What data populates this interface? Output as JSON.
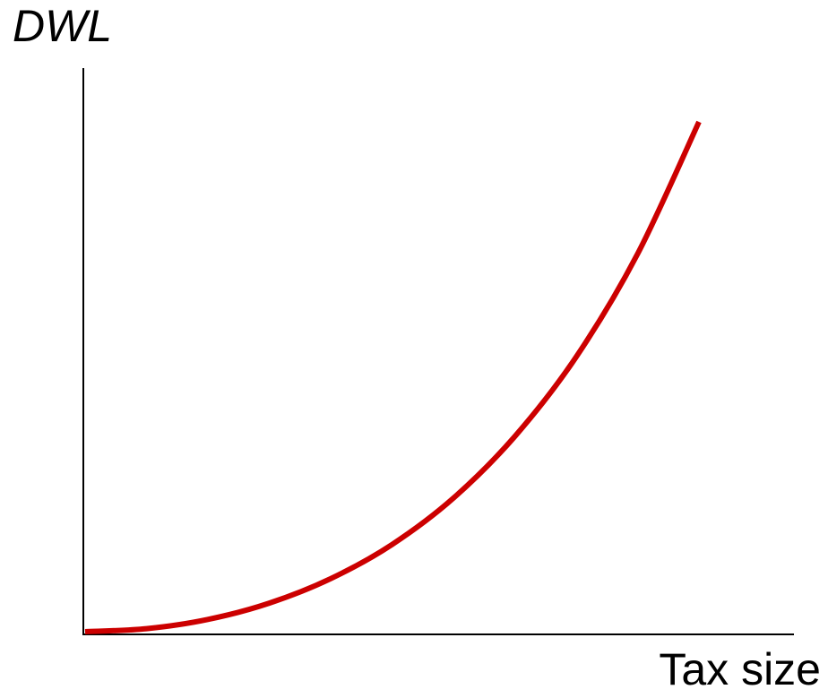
{
  "chart_data": {
    "type": "line",
    "title": "",
    "xlabel": "Tax size",
    "ylabel": "DWL",
    "xlim": [
      0,
      1
    ],
    "ylim": [
      0,
      1
    ],
    "grid": false,
    "series": [
      {
        "color": "#cc0000",
        "x": [
          0,
          0.1,
          0.2,
          0.3,
          0.4,
          0.5,
          0.6,
          0.7,
          0.8,
          0.9,
          1.0
        ],
        "y": [
          0,
          0.006,
          0.024,
          0.056,
          0.104,
          0.171,
          0.262,
          0.383,
          0.539,
          0.741,
          1.0
        ]
      }
    ]
  }
}
